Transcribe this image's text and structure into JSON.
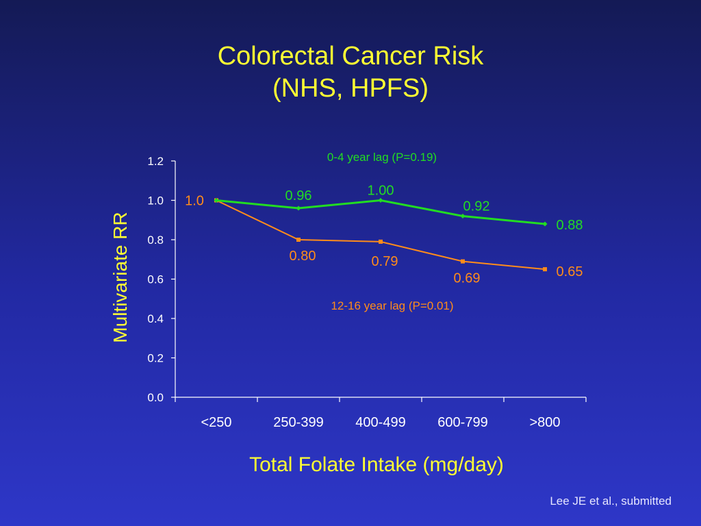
{
  "slide": {
    "title_line1": "Colorectal Cancer Risk",
    "title_line2": "(NHS, HPFS)",
    "citation": "Lee JE et al., submitted"
  },
  "chart_data": {
    "type": "line",
    "categories": [
      "<250",
      "250-399",
      "400-499",
      "600-799",
      ">800"
    ],
    "xlabel": "Total Folate Intake (mg/day)",
    "ylabel": "Multivariate RR",
    "ylim": [
      0,
      1.2
    ],
    "yticks": [
      "0.0",
      "0.2",
      "0.4",
      "0.6",
      "0.8",
      "1.0",
      "1.2"
    ],
    "grid": false,
    "series": [
      {
        "name": "0-4 year lag (P=0.19)",
        "color": "#22dd22",
        "values": [
          1.0,
          0.96,
          1.0,
          0.92,
          0.88
        ],
        "labels": [
          "",
          "0.96",
          "1.00",
          "0.92",
          "0.88"
        ]
      },
      {
        "name": "12-16 year lag (P=0.01)",
        "color": "#ff8c1a",
        "values": [
          1.0,
          0.8,
          0.79,
          0.69,
          0.65
        ],
        "labels": [
          "1.0",
          "0.80",
          "0.79",
          "0.69",
          "0.65"
        ]
      }
    ]
  }
}
